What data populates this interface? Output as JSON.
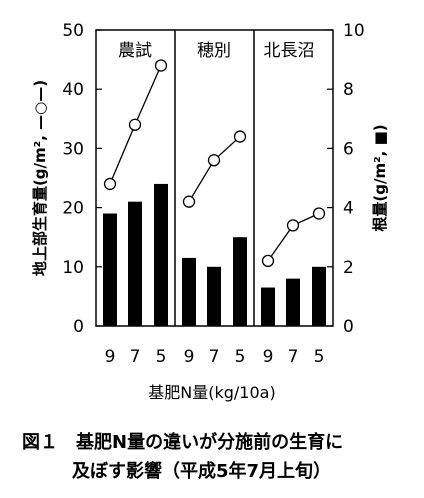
{
  "chart_data": {
    "type": "bar+line",
    "panels": [
      "農試",
      "穂別",
      "北長沼"
    ],
    "x_tick_labels": [
      "9",
      "7",
      "5"
    ],
    "xlabel": "基肥N量(kg/10a)",
    "ylabel_left": "地上部生育量(g/m², —○—)",
    "ylabel_right": "根量(g/m², ■)",
    "ylim_left": [
      0,
      50
    ],
    "ylim_right": [
      0,
      10
    ],
    "yticks_left": [
      "0",
      "10",
      "20",
      "30",
      "40",
      "50"
    ],
    "yticks_right": [
      "0",
      "2",
      "4",
      "6",
      "8",
      "10"
    ],
    "line_series": {
      "axis": "left",
      "marker": "open-circle",
      "values": [
        [
          24,
          34,
          44
        ],
        [
          21,
          28,
          32
        ],
        [
          11,
          17,
          19
        ]
      ]
    },
    "bar_series": {
      "axis": "right",
      "color": "#000000",
      "values": [
        [
          3.8,
          4.2,
          4.8
        ],
        [
          2.3,
          2.0,
          3.0
        ],
        [
          1.3,
          1.6,
          2.0
        ]
      ]
    }
  },
  "caption": {
    "line1": "図１　基肥N量の違いが分施前の生育に",
    "line2": "及ぼす影響（平成5年7月上旬）"
  }
}
